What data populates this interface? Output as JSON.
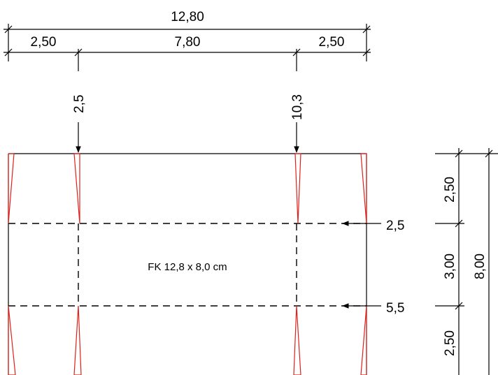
{
  "drawing": {
    "top_dimensions": {
      "overall": "12,80",
      "segments": [
        "2,50",
        "7,80",
        "2,50"
      ]
    },
    "fold_markers": {
      "vertical": [
        "2,5",
        "10,3"
      ],
      "horizontal": [
        "2,5",
        "5,5"
      ]
    },
    "panel_label": "FK 12,8 x 8,0 cm",
    "right_dimensions": {
      "overall": "8,00",
      "segments": [
        "2,50",
        "3,00",
        "2,50"
      ]
    },
    "colors": {
      "lines": "#000000",
      "cut_marks": "#e0201a",
      "background": "#ffffff"
    }
  }
}
